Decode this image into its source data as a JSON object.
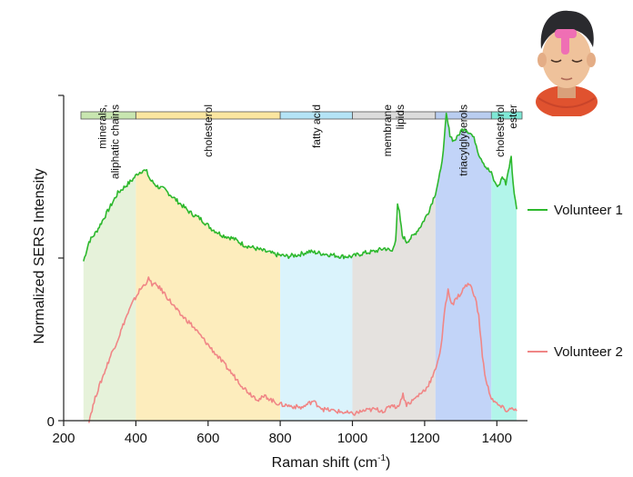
{
  "chart_data": {
    "type": "line",
    "xlabel": "Raman shift (cm",
    "xlabel_sup": "-1",
    "xlabel_tail": ")",
    "ylabel": "Normalized SERS Intensity",
    "xlim": [
      200,
      1480
    ],
    "ylim": [
      0,
      1.0
    ],
    "x_ticks": [
      "200",
      "400",
      "600",
      "800",
      "1000",
      "1200",
      "1400"
    ],
    "x_tick_values": [
      200,
      400,
      600,
      800,
      1000,
      1200,
      1400
    ],
    "y_tick_label": "0",
    "regions": [
      {
        "label": "minerals,\naliphatic chains",
        "x0": 250,
        "x1": 400,
        "bar_color": "#c8e6b0",
        "fill_color": "#e6f2da"
      },
      {
        "label": "cholesterol",
        "x0": 400,
        "x1": 800,
        "bar_color": "#fbe6a0",
        "fill_color": "#fdedbd"
      },
      {
        "label": "fatty acid",
        "x0": 800,
        "x1": 1000,
        "bar_color": "#b4e4f6",
        "fill_color": "#daf3fc"
      },
      {
        "label": "membrane\nlipids",
        "x0": 1000,
        "x1": 1230,
        "bar_color": "#dcdcdc",
        "fill_color": "#e5e2df"
      },
      {
        "label": "triacylglycerols",
        "x0": 1230,
        "x1": 1385,
        "bar_color": "#b9cdf0",
        "fill_color": "#c2d4f8"
      },
      {
        "label": "cholesterol\nester",
        "x0": 1385,
        "x1": 1470,
        "bar_color": "#7ee8d6",
        "fill_color": "#b2f5ea"
      }
    ],
    "series": [
      {
        "name": "Volunteer 1",
        "color": "#2db82d",
        "x": [
          255,
          270,
          290,
          310,
          330,
          350,
          370,
          390,
          405,
          420,
          430,
          440,
          460,
          480,
          500,
          520,
          550,
          580,
          610,
          640,
          670,
          700,
          730,
          760,
          790,
          820,
          850,
          880,
          910,
          940,
          970,
          1000,
          1030,
          1060,
          1090,
          1110,
          1120,
          1125,
          1130,
          1138,
          1150,
          1170,
          1190,
          1210,
          1230,
          1245,
          1255,
          1260,
          1265,
          1270,
          1275,
          1280,
          1290,
          1300,
          1310,
          1320,
          1330,
          1340,
          1350,
          1360,
          1370,
          1385,
          1395,
          1405,
          1415,
          1425,
          1432,
          1440,
          1445,
          1455
        ],
        "y": [
          0.49,
          0.55,
          0.58,
          0.62,
          0.66,
          0.7,
          0.72,
          0.74,
          0.76,
          0.77,
          0.765,
          0.74,
          0.72,
          0.71,
          0.69,
          0.67,
          0.64,
          0.62,
          0.59,
          0.57,
          0.56,
          0.54,
          0.53,
          0.52,
          0.51,
          0.505,
          0.51,
          0.52,
          0.515,
          0.51,
          0.505,
          0.505,
          0.515,
          0.52,
          0.53,
          0.52,
          0.56,
          0.66,
          0.64,
          0.57,
          0.55,
          0.57,
          0.6,
          0.64,
          0.7,
          0.77,
          0.87,
          0.94,
          0.91,
          0.88,
          0.87,
          0.86,
          0.87,
          0.89,
          0.9,
          0.89,
          0.88,
          0.86,
          0.82,
          0.8,
          0.78,
          0.76,
          0.73,
          0.72,
          0.75,
          0.73,
          0.77,
          0.81,
          0.73,
          0.65
        ]
      },
      {
        "name": "Volunteer 2",
        "color": "#f08686",
        "x": [
          270,
          290,
          310,
          330,
          350,
          370,
          390,
          410,
          425,
          435,
          445,
          460,
          480,
          500,
          520,
          550,
          580,
          610,
          640,
          670,
          700,
          720,
          740,
          760,
          780,
          800,
          830,
          860,
          890,
          920,
          950,
          980,
          1000,
          1030,
          1060,
          1090,
          1110,
          1125,
          1140,
          1150,
          1165,
          1185,
          1205,
          1225,
          1245,
          1258,
          1265,
          1272,
          1280,
          1290,
          1300,
          1310,
          1320,
          1330,
          1340,
          1350,
          1360,
          1370,
          1385,
          1400,
          1415,
          1430,
          1445,
          1455
        ],
        "y": [
          0.0,
          0.08,
          0.14,
          0.2,
          0.25,
          0.31,
          0.36,
          0.4,
          0.42,
          0.435,
          0.42,
          0.415,
          0.39,
          0.36,
          0.33,
          0.3,
          0.26,
          0.22,
          0.18,
          0.14,
          0.1,
          0.08,
          0.065,
          0.075,
          0.06,
          0.05,
          0.045,
          0.04,
          0.06,
          0.035,
          0.03,
          0.025,
          0.02,
          0.03,
          0.035,
          0.03,
          0.05,
          0.04,
          0.08,
          0.05,
          0.06,
          0.08,
          0.1,
          0.14,
          0.22,
          0.36,
          0.4,
          0.37,
          0.36,
          0.38,
          0.39,
          0.41,
          0.42,
          0.41,
          0.38,
          0.32,
          0.2,
          0.12,
          0.07,
          0.05,
          0.04,
          0.03,
          0.04,
          0.03
        ]
      }
    ],
    "legend_position": "right"
  }
}
